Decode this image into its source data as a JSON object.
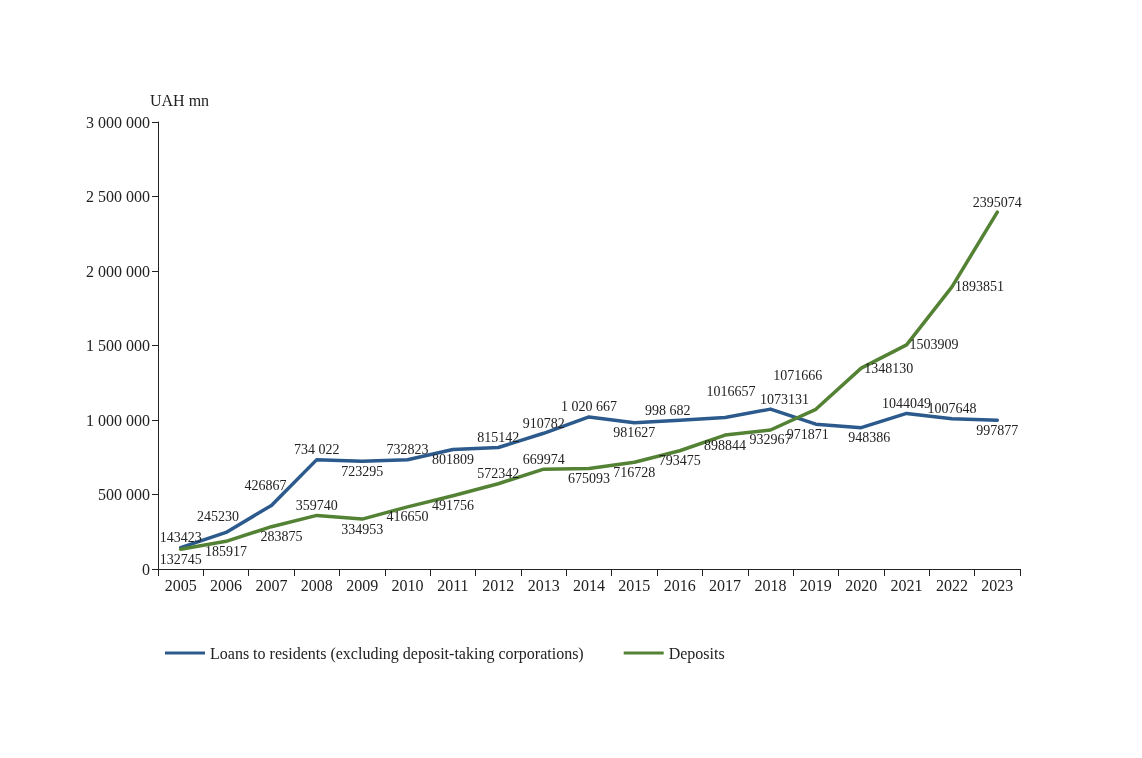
{
  "chart_data": {
    "type": "line",
    "ylabel": "UAH mn",
    "categories": [
      "2005",
      "2006",
      "2007",
      "2008",
      "2009",
      "2010",
      "2011",
      "2012",
      "2013",
      "2014",
      "2015",
      "2016",
      "2017",
      "2018",
      "2019",
      "2020",
      "2021",
      "2022",
      "2023"
    ],
    "series": [
      {
        "name": "Loans to residents (excluding deposit-taking corporations)",
        "color": "#2c5a8c",
        "values": [
          143423,
          245230,
          426867,
          734022,
          723295,
          732823,
          801809,
          815142,
          910782,
          1020667,
          981627,
          998682,
          1016657,
          1073131,
          971871,
          948386,
          1044049,
          1007648,
          997877
        ],
        "value_labels": [
          "143423",
          "245230",
          "426867",
          "734 022",
          "723295",
          "732823",
          "801809",
          "815142",
          "910782",
          "1 020 667",
          "981627",
          "998 682",
          "1016657",
          "1073131",
          "971871",
          "948386",
          "1044049",
          "1007648",
          "997877"
        ]
      },
      {
        "name": "Deposits",
        "color": "#548235",
        "values": [
          132745,
          185917,
          283875,
          359740,
          334953,
          416650,
          491756,
          572342,
          669974,
          675093,
          716728,
          793475,
          898844,
          932967,
          1071666,
          1348130,
          1503909,
          1893851,
          2395074
        ],
        "value_labels": [
          "132745",
          "185917",
          "283875",
          "359740",
          "334953",
          "416650",
          "491756",
          "572342",
          "669974",
          "675093",
          "716728",
          "793475",
          "898844",
          "932967",
          "1071666",
          "1348130",
          "1503909",
          "1893851",
          "2395074"
        ]
      }
    ],
    "ylim": [
      0,
      3000000
    ],
    "yticks": [
      0,
      {
        "value": 500000,
        "label": "500 000"
      },
      {
        "value": 1000000,
        "label": "1 000 000"
      },
      {
        "value": 1500000,
        "label": "1 500 000"
      },
      {
        "value": 2000000,
        "label": "2 000 000"
      },
      {
        "value": 2500000,
        "label": "2 500 000"
      },
      {
        "value": 3000000,
        "label": "3 000 000"
      }
    ],
    "grid": false,
    "legend": "bottom",
    "marker": "none",
    "line_style": "solid"
  }
}
